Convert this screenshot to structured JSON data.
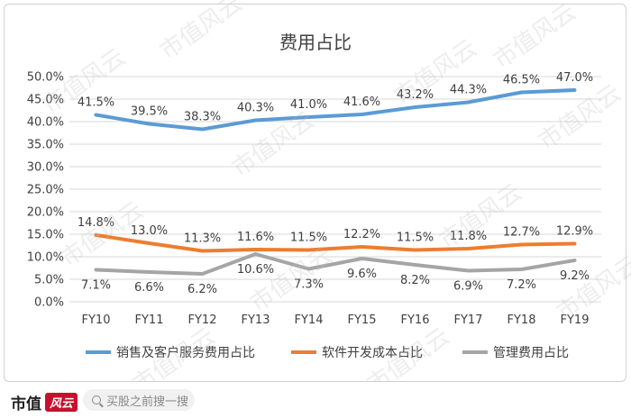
{
  "footer": {
    "brand": "市值",
    "brand_logo": "风云",
    "search_placeholder": "买股之前搜一搜"
  },
  "watermark": "市值风云",
  "colors": {
    "series1": "#5b9bd5",
    "series2": "#ed7d31",
    "series3": "#a5a5a5",
    "grid": "#d9d9d9",
    "text": "#404040"
  },
  "chart_data": {
    "type": "line",
    "title": "费用占比",
    "categories": [
      "FY10",
      "FY11",
      "FY12",
      "FY13",
      "FY14",
      "FY15",
      "FY16",
      "FY17",
      "FY18",
      "FY19"
    ],
    "ylim": [
      0,
      50
    ],
    "yticks": [
      "0.0%",
      "5.0%",
      "10.0%",
      "15.0%",
      "20.0%",
      "25.0%",
      "30.0%",
      "35.0%",
      "40.0%",
      "45.0%",
      "50.0%"
    ],
    "grid": true,
    "legend_position": "bottom",
    "series": [
      {
        "name": "销售及客户服务费用占比",
        "values": [
          41.5,
          39.5,
          38.3,
          40.3,
          41.0,
          41.6,
          43.2,
          44.3,
          46.5,
          47.0
        ],
        "labels": [
          "41.5%",
          "39.5%",
          "38.3%",
          "40.3%",
          "41.0%",
          "41.6%",
          "43.2%",
          "44.3%",
          "46.5%",
          "47.0%"
        ],
        "label_pos": "above"
      },
      {
        "name": "软件开发成本占比",
        "values": [
          14.8,
          13.0,
          11.3,
          11.6,
          11.5,
          12.2,
          11.5,
          11.8,
          12.7,
          12.9
        ],
        "labels": [
          "14.8%",
          "13.0%",
          "11.3%",
          "11.6%",
          "11.5%",
          "12.2%",
          "11.5%",
          "11.8%",
          "12.7%",
          "12.9%"
        ],
        "label_pos": "above"
      },
      {
        "name": "管理费用占比",
        "values": [
          7.1,
          6.6,
          6.2,
          10.6,
          7.3,
          9.6,
          8.2,
          6.9,
          7.2,
          9.2
        ],
        "labels": [
          "7.1%",
          "6.6%",
          "6.2%",
          "10.6%",
          "7.3%",
          "9.6%",
          "8.2%",
          "6.9%",
          "7.2%",
          "9.2%"
        ],
        "label_pos": "below"
      }
    ]
  }
}
